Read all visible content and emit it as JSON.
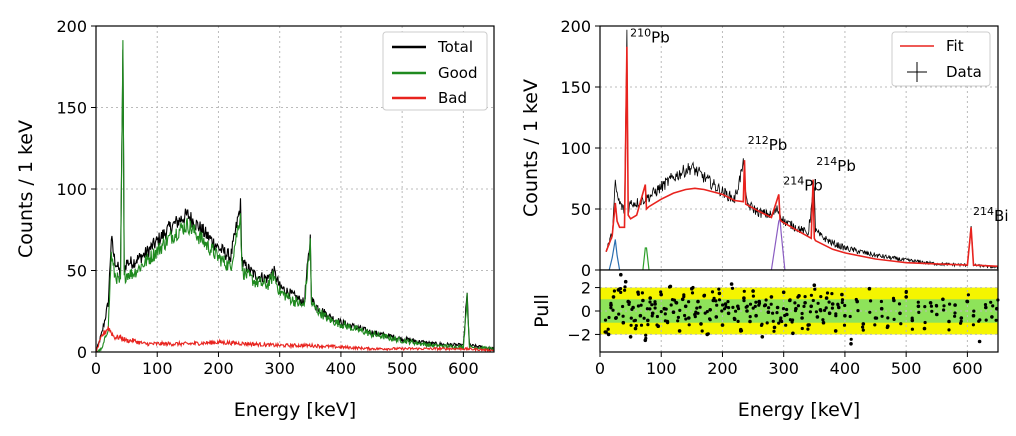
{
  "chart_data": [
    {
      "type": "line",
      "title": "",
      "xlabel": "Energy [keV]",
      "ylabel": "Counts / 1 keV",
      "xlim": [
        0,
        650
      ],
      "ylim": [
        0,
        200
      ],
      "xticks": [
        0,
        100,
        200,
        300,
        400,
        500,
        600
      ],
      "yticks": [
        0,
        50,
        100,
        150,
        200
      ],
      "grid": true,
      "legend_position": "top-right",
      "series": [
        {
          "name": "Total",
          "color": "#000000",
          "x": [
            0,
            10,
            20,
            25,
            30,
            40,
            44,
            46,
            50,
            60,
            80,
            100,
            120,
            140,
            150,
            160,
            180,
            200,
            220,
            236,
            238,
            240,
            260,
            280,
            290,
            300,
            320,
            340,
            350,
            352,
            360,
            380,
            400,
            450,
            500,
            550,
            600,
            606,
            610,
            650
          ],
          "y": [
            0,
            12,
            30,
            70,
            57,
            48,
            185,
            50,
            55,
            55,
            60,
            68,
            76,
            82,
            84,
            80,
            72,
            64,
            58,
            90,
            60,
            54,
            47,
            45,
            50,
            40,
            35,
            30,
            70,
            32,
            28,
            22,
            18,
            12,
            8,
            5,
            4,
            35,
            4,
            2
          ]
        },
        {
          "name": "Good",
          "color": "#1f8a1f",
          "x": [
            0,
            10,
            20,
            25,
            30,
            40,
            44,
            46,
            50,
            60,
            80,
            100,
            120,
            140,
            150,
            160,
            180,
            200,
            220,
            236,
            238,
            240,
            260,
            280,
            290,
            300,
            320,
            340,
            350,
            352,
            360,
            380,
            400,
            450,
            500,
            550,
            600,
            606,
            610,
            650
          ],
          "y": [
            0,
            2,
            15,
            60,
            48,
            42,
            185,
            45,
            48,
            48,
            55,
            62,
            70,
            76,
            78,
            74,
            66,
            58,
            52,
            85,
            55,
            49,
            43,
            41,
            47,
            37,
            32,
            28,
            67,
            30,
            26,
            20,
            17,
            11,
            7,
            4,
            3,
            33,
            3,
            2
          ]
        },
        {
          "name": "Bad",
          "color": "#e8231e",
          "x": [
            0,
            10,
            20,
            30,
            40,
            50,
            60,
            80,
            100,
            150,
            200,
            250,
            300,
            350,
            400,
            450,
            500,
            550,
            600,
            650
          ],
          "y": [
            0,
            10,
            15,
            9,
            9,
            7,
            7,
            5,
            5,
            5,
            6,
            5,
            4,
            4,
            3,
            2,
            2,
            2,
            2,
            1
          ]
        }
      ]
    },
    {
      "type": "line",
      "title": "",
      "xlabel": "Energy [keV]",
      "ylabel": "Counts / 1 keV",
      "xlim": [
        0,
        650
      ],
      "ylim": [
        0,
        200
      ],
      "xticks": [
        0,
        100,
        200,
        300,
        400,
        500,
        600
      ],
      "yticks": [
        0,
        50,
        100,
        150,
        200
      ],
      "grid": true,
      "legend_position": "top-right",
      "series": [
        {
          "name": "Data",
          "color": "#000000",
          "x": [
            10,
            20,
            25,
            30,
            40,
            44,
            46,
            50,
            60,
            80,
            100,
            120,
            140,
            150,
            160,
            180,
            200,
            220,
            236,
            238,
            240,
            260,
            280,
            290,
            300,
            320,
            340,
            350,
            352,
            360,
            380,
            400,
            450,
            500,
            550,
            600,
            606,
            610,
            650
          ],
          "y": [
            15,
            30,
            70,
            57,
            48,
            195,
            50,
            55,
            55,
            60,
            68,
            76,
            82,
            84,
            80,
            72,
            64,
            58,
            90,
            60,
            54,
            47,
            45,
            50,
            40,
            35,
            30,
            70,
            32,
            28,
            22,
            18,
            12,
            8,
            5,
            4,
            35,
            4,
            2
          ]
        },
        {
          "name": "Fit",
          "color": "#e8231e",
          "x": [
            10,
            20,
            25,
            28,
            32,
            40,
            44,
            46,
            50,
            60,
            74,
            76,
            80,
            100,
            120,
            140,
            155,
            170,
            200,
            220,
            234,
            236,
            238,
            260,
            280,
            292,
            294,
            296,
            320,
            345,
            348,
            350,
            352,
            380,
            400,
            450,
            500,
            550,
            600,
            606,
            610,
            650
          ],
          "y": [
            15,
            28,
            55,
            40,
            35,
            35,
            183,
            45,
            42,
            45,
            70,
            50,
            52,
            58,
            63,
            66,
            67,
            66,
            62,
            57,
            56,
            90,
            54,
            48,
            43,
            62,
            42,
            40,
            33,
            26,
            74,
            26,
            24,
            17,
            14,
            9,
            6,
            5,
            4,
            35,
            4,
            3
          ]
        }
      ],
      "components": [
        {
          "name": "component-blue",
          "color": "#2b6fb0",
          "x": [
            15,
            20,
            25,
            28,
            32
          ],
          "y": [
            0,
            10,
            25,
            12,
            0
          ]
        },
        {
          "name": "component-green",
          "color": "#2ea02c",
          "x": [
            70,
            74,
            76,
            80
          ],
          "y": [
            0,
            18,
            18,
            0
          ]
        },
        {
          "name": "component-purple",
          "color": "#8a5cc2",
          "x": [
            280,
            292,
            294,
            296,
            302
          ],
          "y": [
            0,
            40,
            42,
            30,
            0
          ]
        }
      ],
      "annotations": [
        {
          "sup": "210",
          "label": "Pb",
          "x": 46,
          "y": 183
        },
        {
          "sup": "212",
          "label": "Pb",
          "x": 238,
          "y": 95
        },
        {
          "sup": "214",
          "label": "Pb",
          "x": 296,
          "y": 62
        },
        {
          "sup": "214",
          "label": "Pb",
          "x": 350,
          "y": 78
        },
        {
          "sup": "214",
          "label": "Bi",
          "x": 606,
          "y": 37
        }
      ]
    },
    {
      "type": "scatter",
      "title": "",
      "xlabel": "Energy [keV]",
      "ylabel": "Pull",
      "xlim": [
        0,
        650
      ],
      "ylim": [
        -3.5,
        3.5
      ],
      "xticks": [
        0,
        100,
        200,
        300,
        400,
        500,
        600
      ],
      "yticks": [
        -2,
        0,
        2
      ],
      "bands": [
        {
          "name": "2-sigma",
          "range": [
            -2,
            2
          ],
          "color": "#f5f500"
        },
        {
          "name": "1-sigma",
          "range": [
            -1,
            1
          ],
          "color": "#8ee35a"
        }
      ],
      "series": [
        {
          "name": "Pull",
          "color": "#000000",
          "x": [
            10,
            14,
            18,
            22,
            26,
            30,
            34,
            38,
            42,
            46,
            50,
            54,
            58,
            62,
            66,
            70,
            74,
            78,
            82,
            86,
            90,
            95,
            100,
            105,
            110,
            115,
            120,
            125,
            130,
            135,
            140,
            145,
            150,
            155,
            160,
            165,
            170,
            175,
            180,
            185,
            190,
            195,
            200,
            205,
            210,
            215,
            220,
            225,
            230,
            235,
            240,
            245,
            250,
            255,
            260,
            265,
            270,
            275,
            280,
            285,
            290,
            295,
            300,
            305,
            310,
            315,
            320,
            325,
            330,
            335,
            340,
            345,
            350,
            355,
            360,
            365,
            370,
            375,
            380,
            385,
            390,
            395,
            400,
            410,
            420,
            430,
            440,
            450,
            460,
            470,
            480,
            490,
            500,
            510,
            520,
            530,
            540,
            550,
            560,
            570,
            580,
            590,
            600,
            610,
            620,
            630,
            640,
            648
          ],
          "y": [
            -1.8,
            -2.0,
            0.5,
            1.2,
            -0.6,
            1.8,
            3.1,
            -1.0,
            2.5,
            0.8,
            -2.2,
            0.3,
            -1.5,
            1.6,
            -0.4,
            0.9,
            -2.5,
            -0.8,
            1.1,
            -0.2,
            0.6,
            -1.3,
            1.4,
            0.2,
            -0.9,
            2.1,
            -0.1,
            0.7,
            -1.7,
            1.0,
            0.4,
            -0.6,
            1.9,
            -0.3,
            0.8,
            -1.1,
            1.3,
            -2.0,
            0.1,
            0.9,
            -0.5,
            1.5,
            -1.2,
            0.6,
            -0.2,
            2.3,
            -0.7,
            0.4,
            -1.6,
            1.1,
            0.0,
            -0.9,
            1.7,
            -0.4,
            0.8,
            -2.2,
            0.5,
            -0.1,
            1.2,
            -1.4,
            0.3,
            -0.8,
            1.6,
            -0.3,
            0.9,
            -1.9,
            0.2,
            1.3,
            -0.6,
            0.7,
            -1.2,
            0.4,
            2.2,
            -0.5,
            0.1,
            -1.0,
            1.1,
            -0.2,
            0.6,
            -1.7,
            0.3,
            1.4,
            -0.4,
            -2.8,
            0.8,
            -1.1,
            1.9,
            -0.6,
            0.2,
            -1.3,
            0.9,
            -0.2,
            1.2,
            -0.8,
            0.4,
            -1.5,
            0.7,
            -0.3,
            1.0,
            -0.9,
            0.5,
            -0.6,
            0.8,
            -0.4,
            -2.6,
            0.3,
            -0.5,
            0.2
          ]
        }
      ]
    }
  ]
}
